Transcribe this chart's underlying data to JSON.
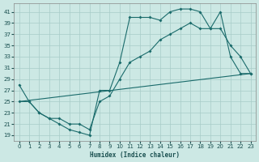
{
  "xlabel": "Humidex (Indice chaleur)",
  "bg_color": "#cce8e4",
  "grid_color": "#a8ccc8",
  "line_color": "#1a6b6b",
  "xlim": [
    -0.5,
    23.5
  ],
  "ylim": [
    18.0,
    42.5
  ],
  "xticks": [
    0,
    1,
    2,
    3,
    4,
    5,
    6,
    7,
    8,
    9,
    10,
    11,
    12,
    13,
    14,
    15,
    16,
    17,
    18,
    19,
    20,
    21,
    22,
    23
  ],
  "yticks": [
    19,
    21,
    23,
    25,
    27,
    29,
    31,
    33,
    35,
    37,
    39,
    41
  ],
  "line1_x": [
    0,
    1,
    2,
    3,
    4,
    5,
    6,
    7,
    8,
    9,
    10,
    11,
    12,
    13,
    14,
    15,
    16,
    17,
    18,
    19,
    20,
    21,
    22,
    23
  ],
  "line1_y": [
    28,
    25,
    23,
    22,
    21,
    20,
    19.5,
    19,
    27,
    27,
    32,
    40,
    40,
    40,
    39.5,
    41,
    41.5,
    41.5,
    41,
    38,
    41,
    33,
    30,
    30
  ],
  "line2_x": [
    0,
    1,
    2,
    3,
    4,
    5,
    6,
    7,
    8,
    9,
    10,
    11,
    12,
    13,
    14,
    15,
    16,
    17,
    18,
    19,
    20,
    21,
    22,
    23
  ],
  "line2_y": [
    25,
    25,
    23,
    22,
    22,
    21,
    21,
    20,
    25,
    26,
    29,
    32,
    33,
    34,
    36,
    37,
    38,
    39,
    38,
    38,
    38,
    35,
    33,
    30
  ],
  "line3_x": [
    0,
    23
  ],
  "line3_y": [
    25,
    30
  ]
}
